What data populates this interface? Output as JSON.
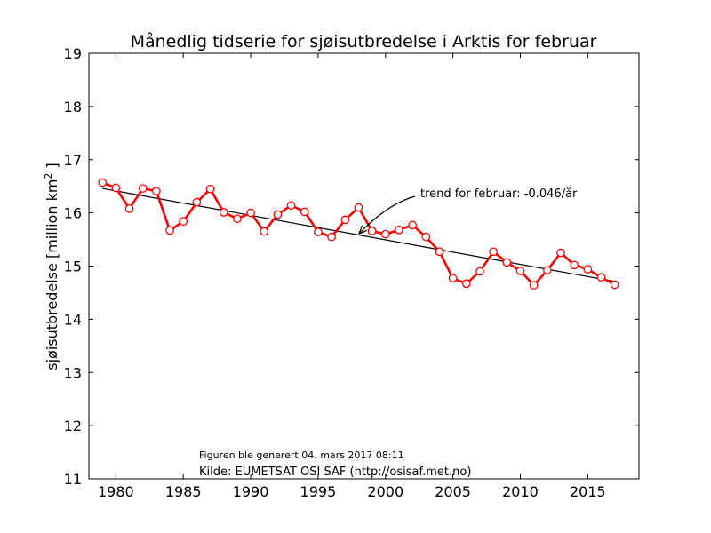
{
  "chart_data": {
    "type": "line",
    "title": "Månedlig tidserie for sjøisutbredelse i Arktis for februar",
    "xlabel": "",
    "ylabel_text": "sjøisutbredelse [million km",
    "ylabel_sup": "2",
    "ylabel_close": " ]",
    "xlim": [
      1978,
      2018.8
    ],
    "ylim": [
      11,
      19
    ],
    "xticks": [
      1980,
      1985,
      1990,
      1995,
      2000,
      2005,
      2010,
      2015
    ],
    "yticks": [
      11,
      12,
      13,
      14,
      15,
      16,
      17,
      18,
      19
    ],
    "grid": false,
    "series": [
      {
        "color": "#ff0000",
        "x": [
          1979,
          1980,
          1981,
          1982,
          1983,
          1984,
          1985,
          1986,
          1987,
          1988,
          1989,
          1990,
          1991,
          1992,
          1993,
          1994,
          1995,
          1996,
          1997,
          1998,
          1999,
          2000,
          2001,
          2002,
          2003,
          2004,
          2005,
          2006,
          2007,
          2008,
          2009,
          2010,
          2011,
          2012,
          2013,
          2014,
          2015,
          2016,
          2017
        ],
        "y": [
          16.57,
          16.47,
          16.08,
          16.46,
          16.41,
          15.67,
          15.84,
          16.2,
          16.45,
          16.01,
          15.89,
          16.0,
          15.65,
          15.97,
          16.14,
          16.02,
          15.64,
          15.55,
          15.87,
          16.1,
          15.66,
          15.6,
          15.68,
          15.77,
          15.55,
          15.27,
          14.77,
          14.67,
          14.9,
          15.27,
          15.07,
          14.91,
          14.64,
          14.92,
          15.25,
          15.02,
          14.94,
          14.79,
          14.65
        ]
      }
    ],
    "trend": {
      "color": "#000000",
      "x": [
        1979,
        2017
      ],
      "y": [
        16.46,
        14.71
      ]
    },
    "annotation": {
      "text": "trend for februar: -0.046/år",
      "arrow_to": [
        1998,
        15.6
      ]
    },
    "footer": {
      "generated": "Figuren ble generert 04. mars 2017 08:11",
      "source": "Kilde: EUMETSAT OSI SAF (http://osisaf.met.no)"
    }
  }
}
